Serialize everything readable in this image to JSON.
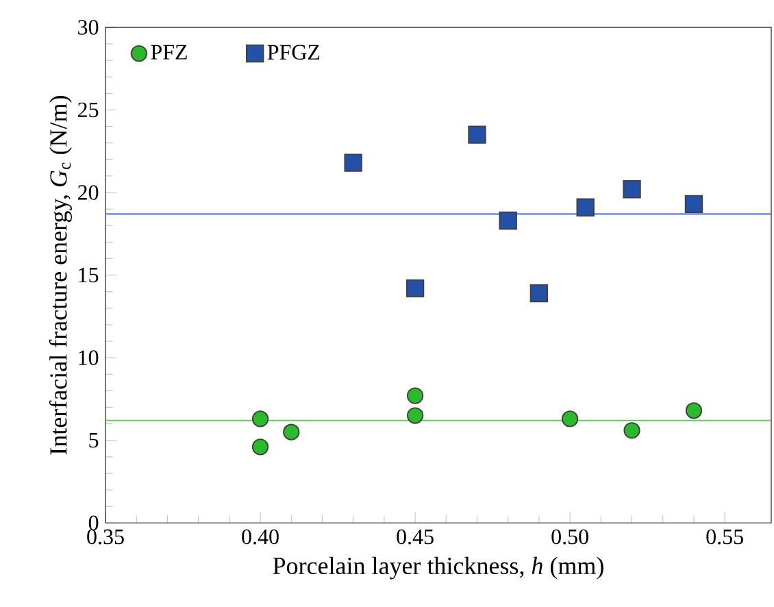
{
  "chart_data": {
    "type": "scatter",
    "xlabel": "Porcelain layer thickness, *h* (mm)",
    "ylabel": "Interfacial fracture energy, *G*$_{c}$ (N/m)",
    "xlim": [
      0.35,
      0.565
    ],
    "ylim": [
      0,
      30
    ],
    "xticks": [
      {
        "value": 0.35,
        "label": "0.35"
      },
      {
        "value": 0.4,
        "label": "0.40"
      },
      {
        "value": 0.45,
        "label": "0.45"
      },
      {
        "value": 0.5,
        "label": "0.50"
      },
      {
        "value": 0.55,
        "label": "0.55"
      }
    ],
    "yticks": [
      0,
      5,
      10,
      15,
      20,
      25,
      30
    ],
    "legend": "top left",
    "grid": false,
    "series": [
      {
        "name": "PFZ",
        "color": "#2db92d",
        "marker": "circle",
        "x": [
          0.4,
          0.4,
          0.41,
          0.45,
          0.45,
          0.5,
          0.52,
          0.54
        ],
        "values": [
          6.3,
          4.6,
          5.5,
          7.7,
          6.5,
          6.3,
          5.6,
          6.8
        ]
      },
      {
        "name": "PFGZ",
        "color": "#2450a8",
        "marker": "square",
        "x": [
          0.43,
          0.45,
          0.47,
          0.48,
          0.49,
          0.505,
          0.52,
          0.54
        ],
        "values": [
          21.8,
          14.2,
          23.5,
          18.3,
          13.9,
          19.1,
          20.2,
          19.3
        ]
      }
    ],
    "ref_lines": [
      {
        "axis": "y",
        "value": 6.2,
        "color": "#66cc55"
      },
      {
        "axis": "y",
        "value": 18.7,
        "color": "#5a7fd8"
      }
    ]
  }
}
